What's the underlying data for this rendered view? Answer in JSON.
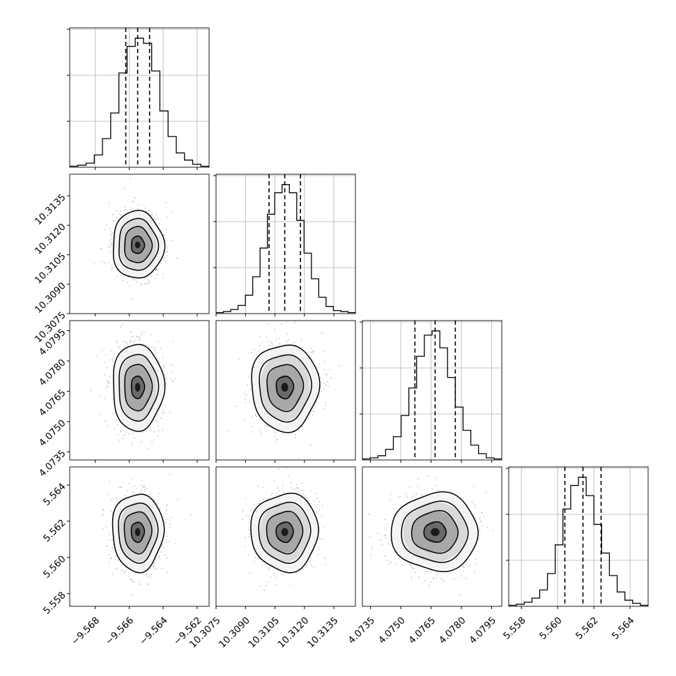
{
  "colors": {
    "hist": "#000000",
    "grid": "#b0b0b0",
    "frame": "#000000",
    "point": "#555555"
  },
  "chart_data": {
    "type": "corner",
    "parameters": [
      {
        "id": "p0",
        "range": [
          -9.5695,
          -9.5613
        ],
        "ticks": [
          -9.568,
          -9.566,
          -9.564,
          -9.562
        ],
        "tick_labels": [
          "−9.568",
          "−9.566",
          "−9.564",
          "−9.562"
        ],
        "quantiles": [
          -9.5662,
          -9.5655,
          -9.5648
        ]
      },
      {
        "id": "p1",
        "range": [
          10.3075,
          10.3146
        ],
        "ticks": [
          10.3075,
          10.309,
          10.3105,
          10.312,
          10.3135
        ],
        "tick_labels": [
          "10.3075",
          "10.3090",
          "10.3105",
          "10.3120",
          "10.3135"
        ],
        "quantiles": [
          10.3102,
          10.311,
          10.3118
        ]
      },
      {
        "id": "p2",
        "range": [
          4.0731,
          4.08
        ],
        "ticks": [
          4.0735,
          4.075,
          4.0765,
          4.078,
          4.0795
        ],
        "tick_labels": [
          "4.0735",
          "4.0750",
          "4.0765",
          "4.0780",
          "4.0795"
        ],
        "quantiles": [
          4.0757,
          4.0767,
          4.0777
        ]
      },
      {
        "id": "p3",
        "range": [
          5.5573,
          5.565
        ],
        "ticks": [
          5.558,
          5.56,
          5.562,
          5.564
        ],
        "tick_labels": [
          "5.558",
          "5.560",
          "5.562",
          "5.564"
        ],
        "quantiles": [
          5.5604,
          5.5614,
          5.5624
        ]
      }
    ],
    "histograms": [
      {
        "param": 0,
        "counts": [
          1,
          2,
          4,
          12,
          28,
          53,
          92,
          118,
          126,
          121,
          94,
          55,
          30,
          14,
          7,
          3,
          1
        ]
      },
      {
        "param": 1,
        "counts": [
          1,
          2,
          4,
          8,
          18,
          36,
          64,
          97,
          118,
          126,
          118,
          91,
          59,
          34,
          16,
          7,
          3,
          2,
          1
        ]
      },
      {
        "param": 2,
        "counts": [
          1,
          2,
          4,
          10,
          22,
          42,
          68,
          98,
          118,
          122,
          106,
          78,
          50,
          28,
          14,
          6,
          2,
          1
        ]
      },
      {
        "param": 3,
        "counts": [
          1,
          2,
          4,
          8,
          16,
          32,
          60,
          95,
          118,
          126,
          108,
          80,
          52,
          30,
          14,
          6,
          3,
          1
        ]
      }
    ],
    "xlabel": "",
    "ylabel": "",
    "grid": true
  }
}
